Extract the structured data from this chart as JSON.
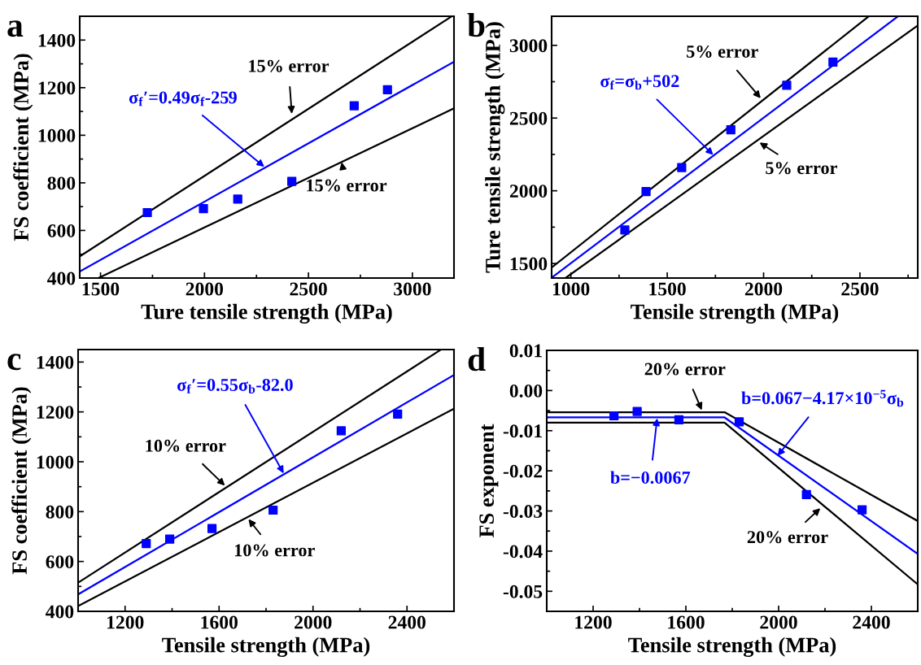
{
  "chart_data": [
    {
      "type": "scatter",
      "title": "a",
      "xlabel": "Ture tensile strength (MPa)",
      "ylabel": "FS coefficient (MPa)",
      "xlim": [
        1400,
        3200
      ],
      "ylim": [
        400,
        1500
      ],
      "xticks": [
        1500,
        {
          "value": 1750,
          "label": null
        },
        2000,
        {
          "value": 2250,
          "label": null
        },
        2500,
        {
          "value": 2750,
          "label": null
        },
        3000
      ],
      "yticks": [
        400,
        {
          "value": 500,
          "label": null
        },
        600,
        {
          "value": 700,
          "label": null
        },
        800,
        {
          "value": 900,
          "label": null
        },
        1000,
        {
          "value": 1100,
          "label": null
        },
        1200,
        {
          "value": 1300,
          "label": null
        },
        1400
      ],
      "grid": false,
      "series": [
        {
          "marker": "square",
          "color": "#0000ff",
          "x": [
            1725,
            1995,
            2160,
            2420,
            2720,
            2880
          ],
          "values": [
            675,
            692,
            732,
            806,
            1124,
            1191
          ]
        },
        {
          "type": "line",
          "color": "#0000ff",
          "x": [
            1400,
            3200
          ],
          "values": [
            427,
            1309
          ]
        },
        {
          "type": "line",
          "color": "#000000",
          "x": [
            1400,
            3190
          ],
          "values": [
            491,
            1500
          ]
        },
        {
          "type": "line",
          "color": "#000000",
          "x": [
            1490,
            3200
          ],
          "values": [
            400,
            1113
          ]
        }
      ],
      "annotations": [
        {
          "text": "15% error",
          "x": 2420,
          "y": 1090
        },
        {
          "text": "15% error",
          "x": 2660,
          "y": 887
        },
        {
          "text": "σ$_{f}$′=0.49σ$_{f}$-259",
          "x": 2288,
          "y": 867
        }
      ]
    },
    {
      "type": "scatter",
      "title": "b",
      "xlabel": "Tensile strength (MPa)",
      "ylabel": "Ture tensile strength (MPa)",
      "xlim": [
        900,
        2800
      ],
      "ylim": [
        1400,
        3200
      ],
      "xticks": [
        1000,
        {
          "value": 1250,
          "label": null
        },
        1500,
        {
          "value": 1750,
          "label": null
        },
        2000,
        {
          "value": 2250,
          "label": null
        },
        2500,
        {
          "value": 2750,
          "label": null
        }
      ],
      "yticks": [
        1500,
        {
          "value": 1750,
          "label": null
        },
        2000,
        {
          "value": 2250,
          "label": null
        },
        2500,
        {
          "value": 2750,
          "label": null
        },
        3000
      ],
      "grid": false,
      "series": [
        {
          "marker": "square",
          "color": "#0000ff",
          "x": [
            1280,
            1390,
            1575,
            1830,
            2120,
            2360
          ],
          "values": [
            1730,
            1995,
            2160,
            2420,
            2725,
            2885
          ]
        },
        {
          "type": "line",
          "color": "#0000ff",
          "x": [
            900,
            2698
          ],
          "values": [
            1402,
            3200
          ]
        },
        {
          "type": "line",
          "color": "#000000",
          "x": [
            900,
            2546
          ],
          "values": [
            1472,
            3200
          ]
        },
        {
          "type": "line",
          "color": "#000000",
          "x": [
            972,
            2800
          ],
          "values": [
            1400,
            3137
          ]
        }
      ],
      "annotations": [
        {
          "text": "5% error",
          "x": 1985,
          "y": 2636
        },
        {
          "text": "5% error",
          "x": 1979,
          "y": 2332
        },
        {
          "text": "σ$_{f}$=σ$_{b}$+502",
          "x": 1739,
          "y": 2246
        }
      ]
    },
    {
      "type": "scatter",
      "title": "c",
      "xlabel": "Tensile strength (MPa)",
      "ylabel": "FS coefficient (MPa)",
      "xlim": [
        1000,
        2600
      ],
      "ylim": [
        400,
        1450
      ],
      "xticks": [
        1200,
        {
          "value": 1400,
          "label": null
        },
        1600,
        {
          "value": 1800,
          "label": null
        },
        2000,
        {
          "value": 2200,
          "label": null
        },
        2400
      ],
      "yticks": [
        400,
        {
          "value": 500,
          "label": null
        },
        600,
        {
          "value": 700,
          "label": null
        },
        800,
        {
          "value": 900,
          "label": null
        },
        1000,
        {
          "value": 1100,
          "label": null
        },
        1200,
        {
          "value": 1300,
          "label": null
        },
        1400
      ],
      "grid": false,
      "series": [
        {
          "marker": "square",
          "color": "#0000ff",
          "x": [
            1290,
            1390,
            1570,
            1830,
            2120,
            2360
          ],
          "values": [
            672,
            690,
            732,
            806,
            1124,
            1191
          ]
        },
        {
          "type": "line",
          "color": "#0000ff",
          "x": [
            1000,
            2600
          ],
          "values": [
            468,
            1348
          ]
        },
        {
          "type": "line",
          "color": "#000000",
          "x": [
            1000,
            2545
          ],
          "values": [
            515,
            1450
          ]
        },
        {
          "type": "line",
          "color": "#000000",
          "x": [
            1000,
            2600
          ],
          "values": [
            421,
            1213
          ]
        }
      ],
      "annotations": [
        {
          "text": "10% error",
          "x": 1625,
          "y": 904
        },
        {
          "text": "10% error",
          "x": 1725,
          "y": 770
        },
        {
          "text": "σ$_{f}$′=0.55σ$_{b}$-82.0",
          "x": 1875,
          "y": 953
        }
      ]
    },
    {
      "type": "scatter",
      "title": "d",
      "xlabel": "Tensile strength (MPa)",
      "ylabel": "FS exponent",
      "xlim": [
        1000,
        2600
      ],
      "ylim": [
        -0.055,
        0.01
      ],
      "xticks": [
        1200,
        {
          "value": 1400,
          "label": null
        },
        1600,
        {
          "value": 1800,
          "label": null
        },
        2000,
        {
          "value": 2200,
          "label": null
        },
        2400
      ],
      "yticks": [
        {
          "value": -0.05,
          "label": "-0.05"
        },
        {
          "value": -0.045,
          "label": null
        },
        {
          "value": -0.04,
          "label": "-0.04"
        },
        {
          "value": -0.035,
          "label": null
        },
        {
          "value": -0.03,
          "label": "-0.03"
        },
        {
          "value": -0.025,
          "label": null
        },
        {
          "value": -0.02,
          "label": "-0.02"
        },
        {
          "value": -0.015,
          "label": null
        },
        {
          "value": -0.01,
          "label": "-0.01"
        },
        {
          "value": -0.005,
          "label": null
        },
        {
          "value": 0.0,
          "label": "0.00"
        },
        {
          "value": 0.005,
          "label": null
        },
        {
          "value": 0.01,
          "label": "0.01"
        }
      ],
      "grid": false,
      "series": [
        {
          "marker": "square",
          "color": "#0000ff",
          "x": [
            1290,
            1390,
            1570,
            1830,
            2120,
            2360
          ],
          "values": [
            -0.0063,
            -0.0052,
            -0.0073,
            -0.0078,
            -0.0259,
            -0.0297
          ]
        },
        {
          "type": "line",
          "color": "#0000ff",
          "x": [
            1000,
            1767,
            2600
          ],
          "values": [
            -0.0067,
            -0.0067,
            -0.0407
          ]
        },
        {
          "type": "line",
          "color": "#000000",
          "x": [
            1000,
            1767,
            2600
          ],
          "values": [
            -0.0054,
            -0.0054,
            -0.0325
          ]
        },
        {
          "type": "line",
          "color": "#000000",
          "x": [
            1000,
            1767,
            2600
          ],
          "values": [
            -0.008,
            -0.008,
            -0.0483
          ]
        }
      ],
      "annotations": [
        {
          "text": "20% error",
          "x": 1669,
          "y": -0.0049
        },
        {
          "text": "20% error",
          "x": 2180,
          "y": -0.0293
        },
        {
          "text": "b=−0.0067",
          "x": 1476,
          "y": -0.0069
        },
        {
          "text": "b=0.067−4.17×10$^{−5}$σ$_{b}$",
          "x": 1995,
          "y": -0.0163
        }
      ]
    }
  ]
}
